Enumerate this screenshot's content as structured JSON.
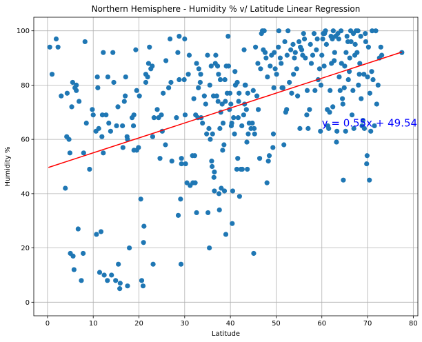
{
  "chart_data": {
    "type": "scatter",
    "title": "Northern Hemisphere - Humidity % v/ Latitude Linear Regression",
    "xlabel": "Latitude",
    "ylabel": "Humidity %",
    "xlim": [
      -3,
      81
    ],
    "ylim": [
      -5,
      105
    ],
    "xticks": [
      0,
      10,
      20,
      30,
      40,
      50,
      60,
      70,
      80
    ],
    "yticks": [
      0,
      20,
      40,
      60,
      80,
      100
    ],
    "grid": true,
    "marker_color": "#1f77b4",
    "line_color": "#ff0000",
    "equation_color": "#0000ff",
    "regression": {
      "equation": "y = 0.55x + 49.54",
      "slope": 0.55,
      "intercept": 49.54,
      "x_range": [
        0.2,
        77.5
      ],
      "label_position": [
        60,
        66
      ]
    },
    "points": [
      [
        0.5,
        94
      ],
      [
        1,
        84
      ],
      [
        1.9,
        97
      ],
      [
        2.3,
        94
      ],
      [
        3,
        76
      ],
      [
        3.9,
        42
      ],
      [
        4.2,
        61
      ],
      [
        4.3,
        77
      ],
      [
        4.7,
        60
      ],
      [
        4.9,
        55
      ],
      [
        5,
        18
      ],
      [
        5.3,
        72
      ],
      [
        5.5,
        81
      ],
      [
        5.6,
        17
      ],
      [
        5.8,
        12
      ],
      [
        6,
        79
      ],
      [
        6.3,
        78
      ],
      [
        6.3,
        80
      ],
      [
        6.7,
        27
      ],
      [
        6.9,
        74
      ],
      [
        7.4,
        8
      ],
      [
        7.8,
        18
      ],
      [
        7.9,
        55
      ],
      [
        8.2,
        96
      ],
      [
        8.5,
        66
      ],
      [
        9.2,
        49
      ],
      [
        9.8,
        71
      ],
      [
        10,
        69
      ],
      [
        10.6,
        63
      ],
      [
        10.7,
        25
      ],
      [
        10.9,
        83
      ],
      [
        11,
        79
      ],
      [
        11.2,
        64
      ],
      [
        11.4,
        11
      ],
      [
        11.7,
        26
      ],
      [
        11.9,
        61
      ],
      [
        12,
        69
      ],
      [
        12.2,
        55
      ],
      [
        12.2,
        92
      ],
      [
        12.4,
        10
      ],
      [
        12.8,
        69
      ],
      [
        13.1,
        8
      ],
      [
        13.2,
        83
      ],
      [
        13.4,
        66
      ],
      [
        13.8,
        63
      ],
      [
        14,
        10
      ],
      [
        14.3,
        92
      ],
      [
        14.5,
        81
      ],
      [
        14.9,
        8
      ],
      [
        15.1,
        65
      ],
      [
        15.4,
        72
      ],
      [
        15.5,
        14
      ],
      [
        15.8,
        5
      ],
      [
        15.9,
        7
      ],
      [
        16.4,
        65
      ],
      [
        16.5,
        57
      ],
      [
        16.8,
        74
      ],
      [
        17,
        76
      ],
      [
        17.1,
        83
      ],
      [
        17.4,
        61
      ],
      [
        17.5,
        60
      ],
      [
        17.5,
        6
      ],
      [
        17.9,
        20
      ],
      [
        18.5,
        68
      ],
      [
        18.8,
        65
      ],
      [
        18.9,
        69
      ],
      [
        18.9,
        56
      ],
      [
        19.3,
        93
      ],
      [
        19.5,
        56
      ],
      [
        19.5,
        78
      ],
      [
        19.9,
        57
      ],
      [
        20.1,
        76
      ],
      [
        20.4,
        38
      ],
      [
        20.6,
        8
      ],
      [
        20.9,
        6
      ],
      [
        21,
        22
      ],
      [
        21.1,
        28
      ],
      [
        21.5,
        81
      ],
      [
        21.5,
        84
      ],
      [
        21.9,
        83
      ],
      [
        22.1,
        88
      ],
      [
        22.3,
        94
      ],
      [
        22.6,
        86
      ],
      [
        22.9,
        87
      ],
      [
        23,
        61
      ],
      [
        23.1,
        14
      ],
      [
        23.3,
        68
      ],
      [
        24,
        71
      ],
      [
        24.3,
        68
      ],
      [
        24.6,
        53
      ],
      [
        24.9,
        69
      ],
      [
        25.1,
        63
      ],
      [
        25.3,
        77
      ],
      [
        25.8,
        58
      ],
      [
        25.9,
        89
      ],
      [
        26.5,
        79
      ],
      [
        26.8,
        97
      ],
      [
        27,
        81
      ],
      [
        27.2,
        52
      ],
      [
        28.2,
        68
      ],
      [
        28.5,
        92
      ],
      [
        28.6,
        32
      ],
      [
        28.8,
        82
      ],
      [
        28.8,
        98
      ],
      [
        29.1,
        38
      ],
      [
        29.2,
        14
      ],
      [
        29.3,
        53
      ],
      [
        29.3,
        51
      ],
      [
        29.9,
        82
      ],
      [
        30,
        97
      ],
      [
        30.1,
        69
      ],
      [
        30.2,
        51
      ],
      [
        30.5,
        44
      ],
      [
        30.8,
        84
      ],
      [
        31,
        91
      ],
      [
        31.2,
        43
      ],
      [
        31.7,
        54
      ],
      [
        31.8,
        44
      ],
      [
        32,
        75
      ],
      [
        32.2,
        54
      ],
      [
        32.3,
        44
      ],
      [
        32.4,
        69
      ],
      [
        32.6,
        88
      ],
      [
        32.6,
        33
      ],
      [
        32.9,
        68
      ],
      [
        33,
        79
      ],
      [
        33.1,
        86
      ],
      [
        33.4,
        81
      ],
      [
        33.5,
        84
      ],
      [
        33.6,
        68
      ],
      [
        33.9,
        66
      ],
      [
        34.3,
        76
      ],
      [
        34.6,
        73
      ],
      [
        34.8,
        62
      ],
      [
        35,
        91
      ],
      [
        35.1,
        33
      ],
      [
        35.3,
        64
      ],
      [
        35.4,
        20
      ],
      [
        35.5,
        80
      ],
      [
        35.6,
        60
      ],
      [
        35.8,
        87
      ],
      [
        35.9,
        52
      ],
      [
        36,
        50
      ],
      [
        36.1,
        62
      ],
      [
        36.3,
        76
      ],
      [
        36.4,
        46
      ],
      [
        36.5,
        41
      ],
      [
        36.5,
        48
      ],
      [
        36.7,
        88
      ],
      [
        36.8,
        91
      ],
      [
        37,
        76
      ],
      [
        37.2,
        87
      ],
      [
        37.3,
        74
      ],
      [
        37.4,
        84
      ],
      [
        37.5,
        40
      ],
      [
        37.6,
        34
      ],
      [
        37.7,
        64
      ],
      [
        37.8,
        82
      ],
      [
        37.9,
        70
      ],
      [
        38,
        42
      ],
      [
        38.2,
        73
      ],
      [
        38.3,
        56
      ],
      [
        38.4,
        66
      ],
      [
        38.6,
        58
      ],
      [
        38.7,
        41
      ],
      [
        38.8,
        82
      ],
      [
        38.9,
        74
      ],
      [
        39,
        25
      ],
      [
        39.1,
        87
      ],
      [
        39.3,
        77
      ],
      [
        39.5,
        98
      ],
      [
        39.6,
        87
      ],
      [
        39.8,
        71
      ],
      [
        39.9,
        77
      ],
      [
        40.1,
        73
      ],
      [
        40.2,
        65
      ],
      [
        40.3,
        66
      ],
      [
        40.4,
        29
      ],
      [
        40.5,
        41
      ],
      [
        40.7,
        68
      ],
      [
        40.9,
        62
      ],
      [
        41,
        85
      ],
      [
        41.1,
        80
      ],
      [
        41.4,
        49
      ],
      [
        41.5,
        81
      ],
      [
        41.6,
        53
      ],
      [
        41.7,
        68
      ],
      [
        41.8,
        74
      ],
      [
        41.9,
        77
      ],
      [
        42,
        39
      ],
      [
        42.3,
        49
      ],
      [
        42.5,
        65
      ],
      [
        42.6,
        49
      ],
      [
        42.9,
        69
      ],
      [
        43,
        93
      ],
      [
        43.1,
        73
      ],
      [
        43.2,
        80
      ],
      [
        43.3,
        80
      ],
      [
        43.5,
        71
      ],
      [
        43.6,
        59
      ],
      [
        43.7,
        49
      ],
      [
        43.8,
        77
      ],
      [
        43.9,
        62
      ],
      [
        44.1,
        66
      ],
      [
        44.5,
        64
      ],
      [
        44.8,
        66
      ],
      [
        45,
        78
      ],
      [
        45.1,
        18
      ],
      [
        45.2,
        64
      ],
      [
        45.3,
        62
      ],
      [
        45.5,
        94
      ],
      [
        45.8,
        76
      ],
      [
        46,
        88
      ],
      [
        46.1,
        71
      ],
      [
        46.4,
        53
      ],
      [
        46.6,
        86
      ],
      [
        46.8,
        99
      ],
      [
        47,
        100
      ],
      [
        47.2,
        93
      ],
      [
        47.4,
        100
      ],
      [
        47.6,
        92
      ],
      [
        47.8,
        90
      ],
      [
        48,
        44
      ],
      [
        48.1,
        83
      ],
      [
        48.3,
        52
      ],
      [
        48.5,
        54
      ],
      [
        48.7,
        87
      ],
      [
        49,
        91
      ],
      [
        49.3,
        57
      ],
      [
        49.4,
        62
      ],
      [
        49.5,
        79
      ],
      [
        49.6,
        92
      ],
      [
        49.8,
        86
      ],
      [
        50.1,
        84
      ],
      [
        50.5,
        94
      ],
      [
        50.6,
        100
      ],
      [
        50.9,
        90
      ],
      [
        51.1,
        88
      ],
      [
        51.3,
        79
      ],
      [
        51.5,
        79
      ],
      [
        51.7,
        58
      ],
      [
        51.9,
        96
      ],
      [
        52.1,
        70
      ],
      [
        52.3,
        71
      ],
      [
        52.4,
        91
      ],
      [
        52.6,
        100
      ],
      [
        52.9,
        81
      ],
      [
        53.2,
        93
      ],
      [
        53.4,
        77
      ],
      [
        53.7,
        95
      ],
      [
        53.8,
        84
      ],
      [
        54,
        90
      ],
      [
        54.2,
        92
      ],
      [
        54.5,
        86
      ],
      [
        54.7,
        76
      ],
      [
        55,
        96
      ],
      [
        55.2,
        64
      ],
      [
        55.3,
        94
      ],
      [
        55.6,
        93
      ],
      [
        55.8,
        91
      ],
      [
        56,
        99
      ],
      [
        56.2,
        97
      ],
      [
        56.4,
        90
      ],
      [
        56.7,
        69
      ],
      [
        56.8,
        78
      ],
      [
        57,
        64
      ],
      [
        57.3,
        71
      ],
      [
        57.5,
        95
      ],
      [
        57.7,
        88
      ],
      [
        58,
        91
      ],
      [
        58.3,
        99
      ],
      [
        58.5,
        78
      ],
      [
        58.8,
        93
      ],
      [
        59,
        97
      ],
      [
        59.2,
        82
      ],
      [
        59.5,
        86
      ],
      [
        59.7,
        63
      ],
      [
        59.8,
        80
      ],
      [
        60,
        91
      ],
      [
        60.2,
        97
      ],
      [
        60.3,
        99
      ],
      [
        60.5,
        87
      ],
      [
        60.6,
        99
      ],
      [
        60.8,
        100
      ],
      [
        61,
        95
      ],
      [
        61.2,
        71
      ],
      [
        61.3,
        65
      ],
      [
        61.5,
        64
      ],
      [
        61.7,
        70
      ],
      [
        61.8,
        78
      ],
      [
        62,
        98
      ],
      [
        62.1,
        88
      ],
      [
        62.3,
        97
      ],
      [
        62.4,
        72
      ],
      [
        62.5,
        100
      ],
      [
        62.7,
        89
      ],
      [
        62.8,
        92
      ],
      [
        63,
        98
      ],
      [
        63.2,
        59
      ],
      [
        63.3,
        63
      ],
      [
        63.5,
        99
      ],
      [
        63.7,
        97
      ],
      [
        63.8,
        83
      ],
      [
        64,
        78
      ],
      [
        64.2,
        100
      ],
      [
        64.3,
        88
      ],
      [
        64.5,
        75
      ],
      [
        64.6,
        73
      ],
      [
        64.7,
        45
      ],
      [
        64.9,
        79
      ],
      [
        65,
        87
      ],
      [
        65.2,
        63
      ],
      [
        65.3,
        92
      ],
      [
        65.5,
        98
      ],
      [
        65.7,
        96
      ],
      [
        65.8,
        82
      ],
      [
        66,
        85
      ],
      [
        66.1,
        90
      ],
      [
        66.3,
        100
      ],
      [
        66.4,
        96
      ],
      [
        66.6,
        69
      ],
      [
        66.8,
        78
      ],
      [
        66.9,
        99
      ],
      [
        67,
        64
      ],
      [
        67.2,
        91
      ],
      [
        67.3,
        95
      ],
      [
        67.5,
        100
      ],
      [
        67.7,
        92
      ],
      [
        67.9,
        100
      ],
      [
        68,
        80
      ],
      [
        68.2,
        84
      ],
      [
        68.3,
        88
      ],
      [
        68.5,
        98
      ],
      [
        68.6,
        75
      ],
      [
        68.8,
        65
      ],
      [
        69,
        67
      ],
      [
        69.2,
        84
      ],
      [
        69.3,
        64
      ],
      [
        69.5,
        99
      ],
      [
        69.6,
        96
      ],
      [
        69.8,
        51
      ],
      [
        69.9,
        54
      ],
      [
        70,
        83
      ],
      [
        70.2,
        94
      ],
      [
        70.4,
        45
      ],
      [
        70.5,
        77
      ],
      [
        70.7,
        63
      ],
      [
        70.9,
        85
      ],
      [
        71,
        100
      ],
      [
        71.2,
        82
      ],
      [
        71.5,
        65
      ],
      [
        71.8,
        100
      ],
      [
        72,
        73
      ],
      [
        72.3,
        80
      ],
      [
        72.6,
        90
      ],
      [
        72.9,
        94
      ],
      [
        73.1,
        91
      ],
      [
        77.5,
        92
      ]
    ]
  }
}
